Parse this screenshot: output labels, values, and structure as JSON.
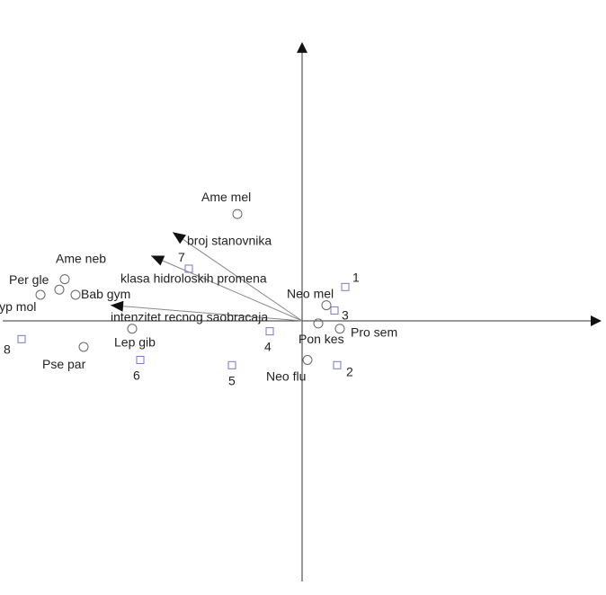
{
  "chart_data": {
    "type": "scatter",
    "title": "",
    "xlabel": "",
    "ylabel": "",
    "grid": false,
    "xlim": [
      -1.11,
      1.11
    ],
    "ylim": [
      -1.0,
      1.07
    ],
    "colors": {
      "axes": "#333333",
      "species": "#666666",
      "sites": "#7777cc",
      "vectors": "#888888",
      "text": "#222222"
    },
    "species": [
      {
        "label": "Ame mel",
        "x": -0.24,
        "y": 0.41
      },
      {
        "label": "Ame neb",
        "x": -0.88,
        "y": 0.16
      },
      {
        "label": "Per gle",
        "x": -0.9,
        "y": 0.12
      },
      {
        "label": "Hyp mol",
        "x": -0.97,
        "y": 0.1
      },
      {
        "label": "Bab gym",
        "x": -0.84,
        "y": 0.1
      },
      {
        "label": "Lep gib",
        "x": -0.63,
        "y": -0.03
      },
      {
        "label": "Pse par",
        "x": -0.81,
        "y": -0.1
      },
      {
        "label": "Neo mel",
        "x": 0.09,
        "y": 0.06
      },
      {
        "label": "Pro sem",
        "x": 0.14,
        "y": -0.03
      },
      {
        "label": "Pon kes",
        "x": 0.06,
        "y": -0.01
      },
      {
        "label": "Neo flu",
        "x": 0.02,
        "y": -0.15
      }
    ],
    "sites": [
      {
        "label": "1",
        "x": 0.16,
        "y": 0.13
      },
      {
        "label": "2",
        "x": 0.13,
        "y": -0.17
      },
      {
        "label": "3",
        "x": 0.12,
        "y": 0.04
      },
      {
        "label": "4",
        "x": -0.12,
        "y": -0.04
      },
      {
        "label": "5",
        "x": -0.26,
        "y": -0.17
      },
      {
        "label": "6",
        "x": -0.6,
        "y": -0.15
      },
      {
        "label": "7",
        "x": -0.42,
        "y": 0.2
      },
      {
        "label": "8",
        "x": -1.04,
        "y": -0.07
      }
    ],
    "vectors": [
      {
        "label": "broj stanovnika",
        "x": -0.48,
        "y": 0.34
      },
      {
        "label": "klasa hidroloskih promena",
        "x": -0.56,
        "y": 0.25
      },
      {
        "label": "intenzitet recnog saobracaja",
        "x": -0.71,
        "y": 0.06
      }
    ]
  }
}
